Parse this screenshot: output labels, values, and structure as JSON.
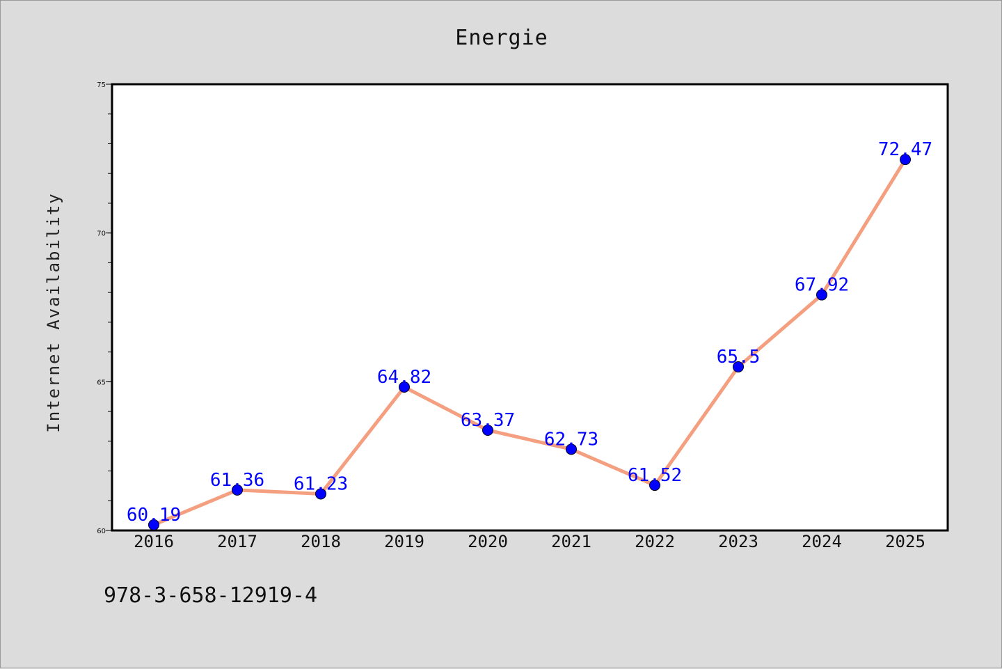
{
  "chart_data": {
    "type": "line",
    "title": "Energie",
    "xlabel": "",
    "ylabel": "Internet Availability",
    "categories": [
      "2016",
      "2017",
      "2018",
      "2019",
      "2020",
      "2021",
      "2022",
      "2023",
      "2024",
      "2025"
    ],
    "series": [
      {
        "values": [
          60.19,
          61.36,
          61.23,
          64.82,
          63.37,
          62.73,
          61.52,
          65.5,
          67.92,
          72.47
        ],
        "labels": [
          "60.19",
          "61.36",
          "61.23",
          "64.82",
          "63.37",
          "62.73",
          "61.52",
          "65.5",
          "67.92",
          "72.47"
        ],
        "line_color": "#f4a080",
        "marker_color": "#0000ff"
      }
    ],
    "ylim": [
      60,
      75
    ],
    "yticks": [
      "60",
      "65",
      "70",
      "75"
    ],
    "grid": false,
    "legend": "none"
  },
  "footnote": "978-3-658-12919-4",
  "colors": {
    "background": "#dcdcdc",
    "plot_area": "#ffffff",
    "line": "#f4a080",
    "marker": "#0000ff",
    "data_label": "#0000ff"
  }
}
